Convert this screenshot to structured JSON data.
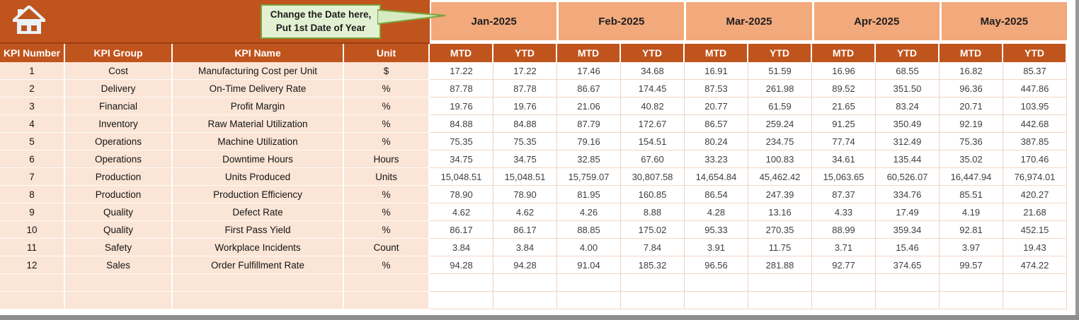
{
  "banner": {
    "callout": {
      "line1": "Change the Date here,",
      "line2": "Put 1st Date of Year"
    }
  },
  "months": [
    "Jan-2025",
    "Feb-2025",
    "Mar-2025",
    "Apr-2025",
    "May-2025"
  ],
  "sub_headers": [
    "MTD",
    "YTD"
  ],
  "left_headers": [
    "KPI Number",
    "KPI Group",
    "KPI Name",
    "Unit"
  ],
  "kpis": [
    {
      "number": "1",
      "group": "Cost",
      "name": "Manufacturing Cost per Unit",
      "unit": "$",
      "values": [
        "17.22",
        "17.22",
        "17.46",
        "34.68",
        "16.91",
        "51.59",
        "16.96",
        "68.55",
        "16.82",
        "85.37"
      ]
    },
    {
      "number": "2",
      "group": "Delivery",
      "name": "On-Time Delivery Rate",
      "unit": "%",
      "values": [
        "87.78",
        "87.78",
        "86.67",
        "174.45",
        "87.53",
        "261.98",
        "89.52",
        "351.50",
        "96.36",
        "447.86"
      ]
    },
    {
      "number": "3",
      "group": "Financial",
      "name": "Profit Margin",
      "unit": "%",
      "values": [
        "19.76",
        "19.76",
        "21.06",
        "40.82",
        "20.77",
        "61.59",
        "21.65",
        "83.24",
        "20.71",
        "103.95"
      ]
    },
    {
      "number": "4",
      "group": "Inventory",
      "name": "Raw Material Utilization",
      "unit": "%",
      "values": [
        "84.88",
        "84.88",
        "87.79",
        "172.67",
        "86.57",
        "259.24",
        "91.25",
        "350.49",
        "92.19",
        "442.68"
      ]
    },
    {
      "number": "5",
      "group": "Operations",
      "name": "Machine Utilization",
      "unit": "%",
      "values": [
        "75.35",
        "75.35",
        "79.16",
        "154.51",
        "80.24",
        "234.75",
        "77.74",
        "312.49",
        "75.36",
        "387.85"
      ]
    },
    {
      "number": "6",
      "group": "Operations",
      "name": "Downtime Hours",
      "unit": "Hours",
      "values": [
        "34.75",
        "34.75",
        "32.85",
        "67.60",
        "33.23",
        "100.83",
        "34.61",
        "135.44",
        "35.02",
        "170.46"
      ]
    },
    {
      "number": "7",
      "group": "Production",
      "name": "Units Produced",
      "unit": "Units",
      "values": [
        "15,048.51",
        "15,048.51",
        "15,759.07",
        "30,807.58",
        "14,654.84",
        "45,462.42",
        "15,063.65",
        "60,526.07",
        "16,447.94",
        "76,974.01"
      ]
    },
    {
      "number": "8",
      "group": "Production",
      "name": "Production Efficiency",
      "unit": "%",
      "values": [
        "78.90",
        "78.90",
        "81.95",
        "160.85",
        "86.54",
        "247.39",
        "87.37",
        "334.76",
        "85.51",
        "420.27"
      ]
    },
    {
      "number": "9",
      "group": "Quality",
      "name": "Defect Rate",
      "unit": "%",
      "values": [
        "4.62",
        "4.62",
        "4.26",
        "8.88",
        "4.28",
        "13.16",
        "4.33",
        "17.49",
        "4.19",
        "21.68"
      ]
    },
    {
      "number": "10",
      "group": "Quality",
      "name": "First Pass Yield",
      "unit": "%",
      "values": [
        "86.17",
        "86.17",
        "88.85",
        "175.02",
        "95.33",
        "270.35",
        "88.99",
        "359.34",
        "92.81",
        "452.15"
      ]
    },
    {
      "number": "11",
      "group": "Safety",
      "name": "Workplace Incidents",
      "unit": "Count",
      "values": [
        "3.84",
        "3.84",
        "4.00",
        "7.84",
        "3.91",
        "11.75",
        "3.71",
        "15.46",
        "3.97",
        "19.43"
      ]
    },
    {
      "number": "12",
      "group": "Sales",
      "name": "Order Fulfillment Rate",
      "unit": "%",
      "values": [
        "94.28",
        "94.28",
        "91.04",
        "185.32",
        "96.56",
        "281.88",
        "92.77",
        "374.65",
        "99.57",
        "474.22"
      ]
    }
  ],
  "empty_rows": 2,
  "colors": {
    "banner": "#C0541D",
    "banner_edge": "#9C3D10",
    "month_header_fill": "#F2A97C",
    "row_fill": "#FBE5D6",
    "callout_fill": "#E3F1D3",
    "callout_border": "#79A43C",
    "grid_line": "#F2D2BF",
    "header_text": "#FFFFFF",
    "value_text": "#3E3E3E",
    "window_edge_gray": "#8E8E8E"
  }
}
